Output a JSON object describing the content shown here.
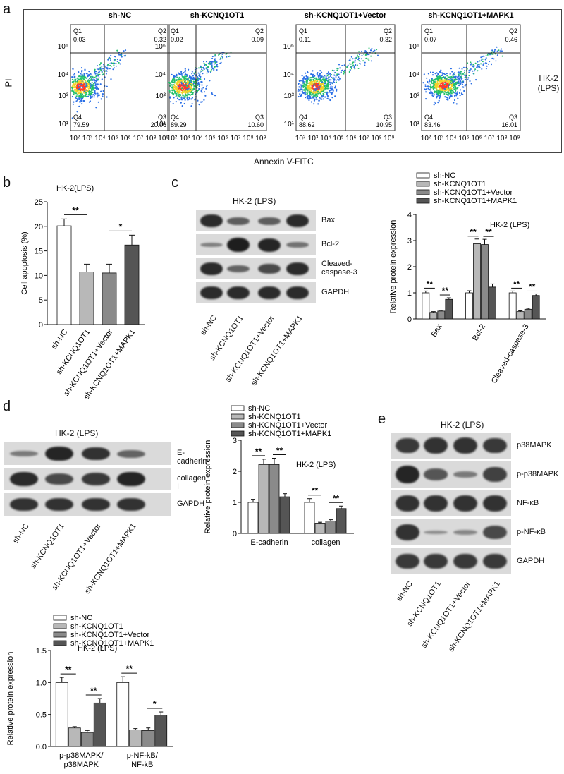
{
  "panels": {
    "a": "a",
    "b": "b",
    "c": "c",
    "d": "d",
    "e": "e"
  },
  "colors": {
    "white": "#ffffff",
    "lightgray": "#b8b8b8",
    "midgray": "#8a8a8a",
    "darkgray": "#555555"
  },
  "flow": {
    "ylabel": "PI",
    "xlabel": "Annexin V-FITC",
    "side_label_line1": "HK-2",
    "side_label_line2": "(LPS)",
    "xticks": [
      "10²",
      "10³",
      "10⁴",
      "10⁵",
      "10⁶",
      "10⁷",
      "10⁸",
      "10⁹"
    ],
    "yticks": [
      "10⁶",
      "10⁴",
      "10³",
      "10¹"
    ],
    "plots": [
      {
        "title": "sh-NC",
        "q1": "0.03",
        "q2": "0.32",
        "q3": "20.06",
        "q4": "79.59"
      },
      {
        "title": "sh-KCNQ1OT1",
        "q1": "0.02",
        "q2": "0.09",
        "q3": "10.60",
        "q4": "89.29"
      },
      {
        "title": "sh-KCNQ1OT1+Vector",
        "q1": "0.11",
        "q2": "0.32",
        "q3": "10.95",
        "q4": "88.62"
      },
      {
        "title": "sh-KCNQ1OT1+MAPK1",
        "q1": "0.07",
        "q2": "0.46",
        "q3": "16.01",
        "q4": "83.46"
      }
    ],
    "quad_names": {
      "q1": "Q1",
      "q2": "Q2",
      "q3": "Q3",
      "q4": "Q4"
    }
  },
  "groups": [
    "sh-NC",
    "sh-KCNQ1OT1",
    "sh-KCNQ1OT1+Vector",
    "sh-KCNQ1OT1+MAPK1"
  ],
  "wb_c": {
    "title": "HK-2 (LPS)",
    "proteins": [
      "Bax",
      "Bcl-2",
      "Cleaved-\ncaspase-3",
      "GAPDH"
    ]
  },
  "wb_d": {
    "title": "HK-2 (LPS)",
    "proteins": [
      "E-cadherin",
      "collagen I",
      "GAPDH"
    ]
  },
  "wb_e": {
    "title": "HK-2 (LPS)",
    "proteins": [
      "p38MAPK",
      "p-p38MAPK",
      "NF-κB",
      "p-NF-κB",
      "GAPDH"
    ]
  },
  "chart_data": [
    {
      "type": "bar",
      "title": "HK-2(LPS)",
      "ylabel": "Cell apoptosis (%)",
      "categories": [
        "sh-NC",
        "sh-KCNQ1OT1",
        "sh-KCNQ1OT1+Vector",
        "sh-KCNQ1OT1+MAPK1"
      ],
      "values": [
        20.1,
        10.7,
        10.5,
        16.2
      ],
      "errors": [
        1.4,
        1.6,
        1.8,
        2.0
      ],
      "ylim": [
        0,
        25
      ],
      "yticks": [
        0,
        5,
        10,
        15,
        20,
        25
      ],
      "significance": [
        {
          "from": 0,
          "to": 1,
          "label": "**"
        },
        {
          "from": 2,
          "to": 3,
          "label": "*"
        }
      ]
    },
    {
      "type": "bar",
      "title": "HK-2 (LPS)",
      "ylabel": "Relative protein expression",
      "categories": [
        "Bax",
        "Bcl-2",
        "Cleaved-caspase-3"
      ],
      "series": [
        {
          "name": "sh-NC",
          "values": [
            1.0,
            1.0,
            1.0
          ],
          "errors": [
            0.07,
            0.08,
            0.07
          ]
        },
        {
          "name": "sh-KCNQ1OT1",
          "values": [
            0.25,
            2.88,
            0.28
          ],
          "errors": [
            0.03,
            0.18,
            0.03
          ]
        },
        {
          "name": "sh-KCNQ1OT1+Vector",
          "values": [
            0.3,
            2.85,
            0.37
          ],
          "errors": [
            0.03,
            0.2,
            0.04
          ]
        },
        {
          "name": "sh-KCNQ1OT1+MAPK1",
          "values": [
            0.75,
            1.22,
            0.9
          ],
          "errors": [
            0.06,
            0.12,
            0.06
          ]
        }
      ],
      "ylim": [
        0,
        4
      ],
      "yticks": [
        0,
        1,
        2,
        3,
        4
      ],
      "significance": [
        {
          "cat": 0,
          "pairs": [
            [
              0,
              1
            ],
            [
              2,
              3
            ]
          ],
          "label": "**"
        },
        {
          "cat": 1,
          "pairs": [
            [
              0,
              1
            ],
            [
              2,
              3
            ]
          ],
          "label": "**"
        },
        {
          "cat": 2,
          "pairs": [
            [
              0,
              1
            ],
            [
              2,
              3
            ]
          ],
          "label": "**"
        }
      ]
    },
    {
      "type": "bar",
      "title": "HK-2 (LPS)",
      "ylabel": "Relative protein expression",
      "categories": [
        "E-cadherin",
        "collagen"
      ],
      "series": [
        {
          "name": "sh-NC",
          "values": [
            1.0,
            1.0
          ],
          "errors": [
            0.1,
            0.12
          ]
        },
        {
          "name": "sh-KCNQ1OT1",
          "values": [
            2.22,
            0.33
          ],
          "errors": [
            0.17,
            0.03
          ]
        },
        {
          "name": "sh-KCNQ1OT1+Vector",
          "values": [
            2.22,
            0.4
          ],
          "errors": [
            0.2,
            0.04
          ]
        },
        {
          "name": "sh-KCNQ1OT1+MAPK1",
          "values": [
            1.18,
            0.8
          ],
          "errors": [
            0.1,
            0.08
          ]
        }
      ],
      "ylim": [
        0,
        3
      ],
      "yticks": [
        0,
        1,
        2,
        3
      ],
      "significance": [
        {
          "cat": 0,
          "pairs": [
            [
              0,
              1
            ],
            [
              2,
              3
            ]
          ],
          "label": "**"
        },
        {
          "cat": 1,
          "pairs": [
            [
              0,
              1
            ],
            [
              2,
              3
            ]
          ],
          "label": "**"
        }
      ]
    },
    {
      "type": "bar",
      "title": "HK-2 (LPS)",
      "ylabel": "Relative protein expression",
      "categories": [
        "p-p38MAPK/\np38MAPK",
        "p-NF-kB/\nNF-kB"
      ],
      "series": [
        {
          "name": "sh-NC",
          "values": [
            1.0,
            1.0
          ],
          "errors": [
            0.08,
            0.09
          ]
        },
        {
          "name": "sh-KCNQ1OT1",
          "values": [
            0.29,
            0.26
          ],
          "errors": [
            0.02,
            0.02
          ]
        },
        {
          "name": "sh-KCNQ1OT1+Vector",
          "values": [
            0.22,
            0.25
          ],
          "errors": [
            0.03,
            0.04
          ]
        },
        {
          "name": "sh-KCNQ1OT1+MAPK1",
          "values": [
            0.68,
            0.49
          ],
          "errors": [
            0.07,
            0.05
          ]
        }
      ],
      "ylim": [
        0,
        1.5
      ],
      "yticks": [
        0.0,
        0.5,
        1.0,
        1.5
      ],
      "significance": [
        {
          "cat": 0,
          "pairs": [
            [
              0,
              1
            ],
            [
              2,
              3
            ]
          ],
          "labels": [
            "**",
            "**"
          ]
        },
        {
          "cat": 1,
          "pairs": [
            [
              0,
              1
            ],
            [
              2,
              3
            ]
          ],
          "labels": [
            "**",
            "*"
          ]
        }
      ]
    }
  ]
}
